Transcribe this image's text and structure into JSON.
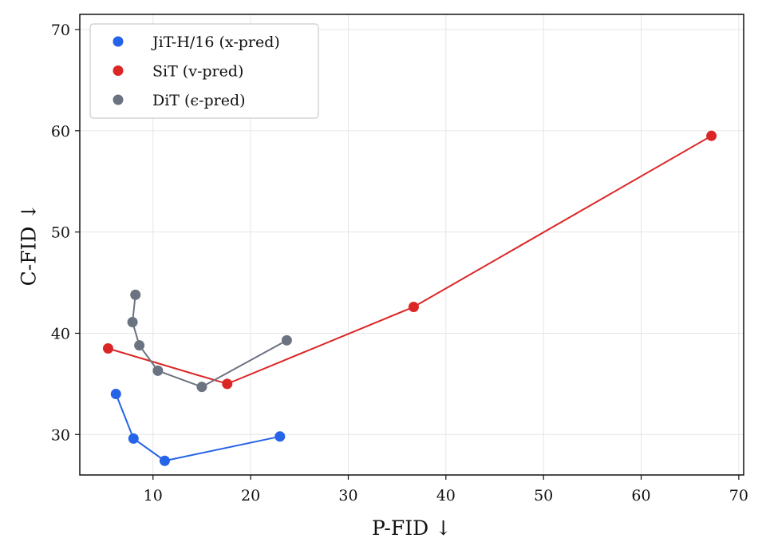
{
  "chart_data": {
    "type": "scatter",
    "xlabel": "P-FID ↓",
    "ylabel": "C-FID ↓",
    "xlim": [
      2.5,
      70.5
    ],
    "ylim": [
      26,
      71.5
    ],
    "xticks": [
      10,
      20,
      30,
      40,
      50,
      60,
      70
    ],
    "yticks": [
      30,
      40,
      50,
      60,
      70
    ],
    "grid": true,
    "legend_position": "top-left",
    "series": [
      {
        "name": "JiT-H/16 (x-pred)",
        "color": "#2563e8",
        "x": [
          6.2,
          8.0,
          11.2,
          23.0
        ],
        "y": [
          34.0,
          29.6,
          27.4,
          29.8
        ]
      },
      {
        "name": "SiT (v-pred)",
        "color": "#dc2626",
        "x": [
          5.4,
          17.6,
          36.7,
          67.2
        ],
        "y": [
          38.5,
          35.0,
          42.6,
          59.5
        ]
      },
      {
        "name": "DiT (ϵ-pred)",
        "color": "#6b7280",
        "x": [
          8.2,
          7.9,
          8.6,
          10.5,
          15.0,
          23.7
        ],
        "y": [
          43.8,
          41.1,
          38.8,
          36.3,
          34.7,
          39.3
        ]
      }
    ]
  }
}
